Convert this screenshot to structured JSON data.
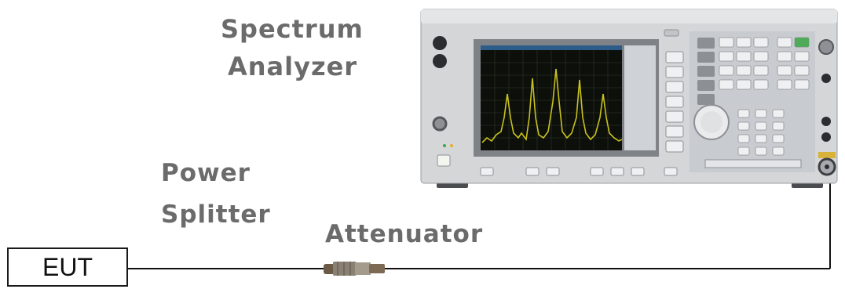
{
  "labels": {
    "spectrum_line1": "Spectrum",
    "spectrum_line2": "Analyzer",
    "power_line1": "Power",
    "power_line2": "Splitter",
    "attenuator": "Attenuator",
    "eut": "EUT"
  },
  "colors": {
    "label_text": "#6b6b6b",
    "cable": "#111111",
    "screen_bg": "#0d0f0a",
    "trace": "#c8c21e",
    "instrument_body": "#d4d6d8"
  }
}
